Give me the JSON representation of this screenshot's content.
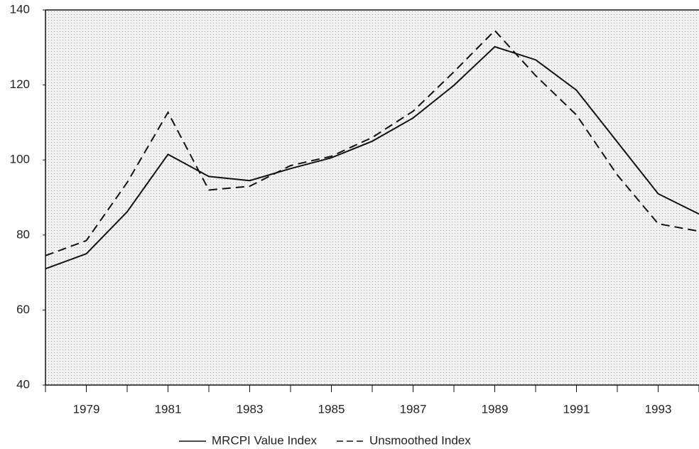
{
  "chart_data": {
    "type": "line",
    "x": [
      1978,
      1979,
      1980,
      1981,
      1982,
      1983,
      1984,
      1985,
      1986,
      1987,
      1988,
      1989,
      1990,
      1991,
      1992,
      1993,
      1994
    ],
    "series": [
      {
        "name": "MRCPI Value Index",
        "color": "#111111",
        "dash": "solid",
        "values": [
          71,
          75,
          86.2,
          101.5,
          95.6,
          94.5,
          97.7,
          100.6,
          105,
          111.2,
          119.9,
          130.2,
          126.7,
          118.6,
          104.8,
          91,
          85.6
        ]
      },
      {
        "name": "Unsmoothed Index",
        "color": "#111111",
        "dash": "dashed",
        "values": [
          74.5,
          78.5,
          94,
          112.7,
          92,
          93,
          98.5,
          101,
          106,
          113,
          123.5,
          134.5,
          122.5,
          112,
          96,
          83,
          81
        ]
      }
    ],
    "xlim": [
      1978,
      1994
    ],
    "xticks": [
      1979,
      1981,
      1983,
      1985,
      1987,
      1989,
      1991,
      1993
    ],
    "xminorticks": [
      1978,
      1980,
      1982,
      1984,
      1986,
      1988,
      1990,
      1992,
      1994
    ],
    "ylim": [
      40,
      140
    ],
    "yticks": [
      40,
      60,
      80,
      100,
      120,
      140
    ],
    "legend": "bottom"
  }
}
